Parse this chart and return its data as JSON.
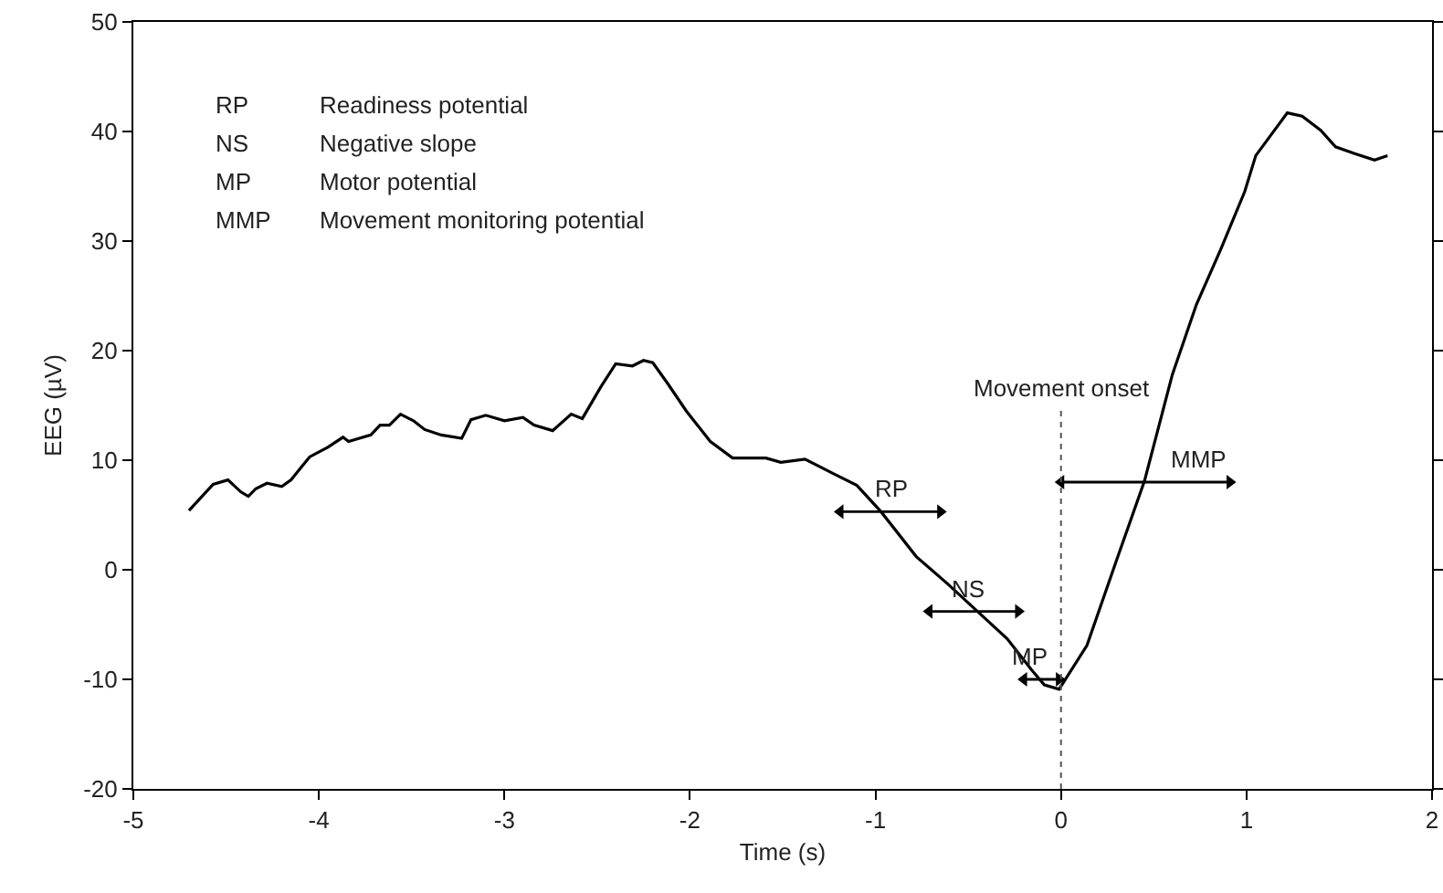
{
  "chart_data": {
    "type": "line",
    "xlabel": "Time (s)",
    "ylabel": "EEG (µV)",
    "x": [
      -4.7,
      -4.57,
      -4.49,
      -4.42,
      -4.38,
      -4.34,
      -4.28,
      -4.2,
      -4.15,
      -4.05,
      -3.95,
      -3.87,
      -3.84,
      -3.72,
      -3.67,
      -3.62,
      -3.56,
      -3.49,
      -3.43,
      -3.34,
      -3.23,
      -3.18,
      -3.1,
      -3.0,
      -2.9,
      -2.84,
      -2.74,
      -2.64,
      -2.58,
      -2.48,
      -2.4,
      -2.31,
      -2.25,
      -2.2,
      -2.12,
      -2.02,
      -1.89,
      -1.77,
      -1.59,
      -1.51,
      -1.38,
      -1.23,
      -1.1,
      -0.97,
      -0.78,
      -0.61,
      -0.45,
      -0.29,
      -0.16,
      -0.09,
      -0.01,
      0.14,
      0.3,
      0.45,
      0.6,
      0.73,
      0.86,
      0.99,
      1.05,
      1.22,
      1.3,
      1.4,
      1.48,
      1.58,
      1.69,
      1.76
    ],
    "series": [
      {
        "x": [
          -1.19,
          -0.65
        ],
        "values": [
          5.3,
          5.3
        ],
        "color": "#000000",
        "marker": "triangle"
      },
      {
        "x": [
          -0.71,
          -0.23
        ],
        "values": [
          -3.8,
          -3.8
        ],
        "color": "#000000",
        "marker": "triangle"
      },
      {
        "x": [
          -0.2,
          -0.01
        ],
        "values": [
          -10,
          -10
        ],
        "color": "#000000",
        "marker": "triangle"
      },
      {
        "x": [
          0,
          0.91
        ],
        "values": [
          8,
          8
        ],
        "color": "#000000",
        "marker": "triangle"
      },
      {
        "color": "#000000",
        "values": [
          5.4,
          7.8,
          8.2,
          7.1,
          6.7,
          7.4,
          7.9,
          7.6,
          8.2,
          10.3,
          11.2,
          12.1,
          11.7,
          12.3,
          13.2,
          13.2,
          14.2,
          13.6,
          12.8,
          12.3,
          12.0,
          13.7,
          14.1,
          13.6,
          13.9,
          13.2,
          12.7,
          14.2,
          13.8,
          16.7,
          18.8,
          18.6,
          19.1,
          18.9,
          17.0,
          14.5,
          11.7,
          10.2,
          10.2,
          9.8,
          10.1,
          8.8,
          7.7,
          5.3,
          1.2,
          -1.3,
          -3.8,
          -6.3,
          -9.1,
          -10.5,
          -10.9,
          -6.9,
          0.9,
          8.1,
          17.8,
          24.2,
          29.2,
          34.5,
          37.8,
          41.7,
          41.4,
          40.1,
          38.6,
          38.0,
          37.4,
          37.8
        ]
      }
    ],
    "xlim": [
      -5,
      2
    ],
    "xticks": [
      -5,
      -4,
      -3,
      -2,
      -1,
      0,
      1,
      2
    ],
    "ylim": [
      -20,
      50
    ],
    "yticks": [
      -20,
      -10,
      0,
      10,
      20,
      30,
      40,
      50
    ],
    "grid": false,
    "marker": "none",
    "line_style": "solid",
    "ref_lines": [
      {
        "axis": "x",
        "value": 0,
        "label": "Movement onset",
        "line_style": "dotted",
        "color": "#555555"
      }
    ],
    "annotations": [
      "RP Readiness potential",
      "NS Negative slope",
      "MP Motor potential",
      "MMP Movement monitoring potential",
      {
        "text": "RP",
        "x": -0.91,
        "y": 5.3
      },
      {
        "text": "NS",
        "x": -0.5,
        "y": -3.8
      },
      {
        "text": "MP",
        "x": -0.17,
        "y": -10
      },
      {
        "text": "MMP",
        "x": 0.74,
        "y": 8
      }
    ]
  }
}
